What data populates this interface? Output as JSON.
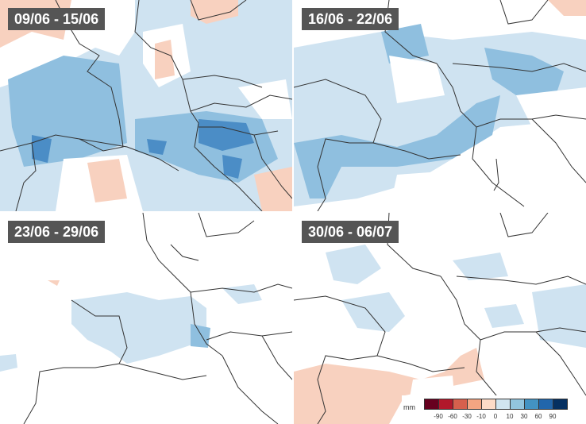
{
  "panels": [
    {
      "label": "09/06 - 15/06"
    },
    {
      "label": "16/06 - 22/06"
    },
    {
      "label": "23/06 - 29/06"
    },
    {
      "label": "30/06 - 06/07"
    }
  ],
  "legend": {
    "unit": "mm",
    "colors": [
      "#67001f",
      "#b2182b",
      "#d6604d",
      "#f4a582",
      "#fddbc7",
      "#ffffff",
      "#d1e5f0",
      "#92c5de",
      "#4393c3",
      "#2166ac",
      "#053061"
    ],
    "ticks": [
      "-90",
      "-60",
      "-30",
      "-10",
      "0",
      "10",
      "30",
      "60",
      "90"
    ]
  },
  "colors": {
    "light_blue": "#cfe3f1",
    "mid_blue": "#8fbfdf",
    "dark_blue": "#4b8dc6",
    "light_red": "#f8d1bf",
    "border": "#333333"
  }
}
